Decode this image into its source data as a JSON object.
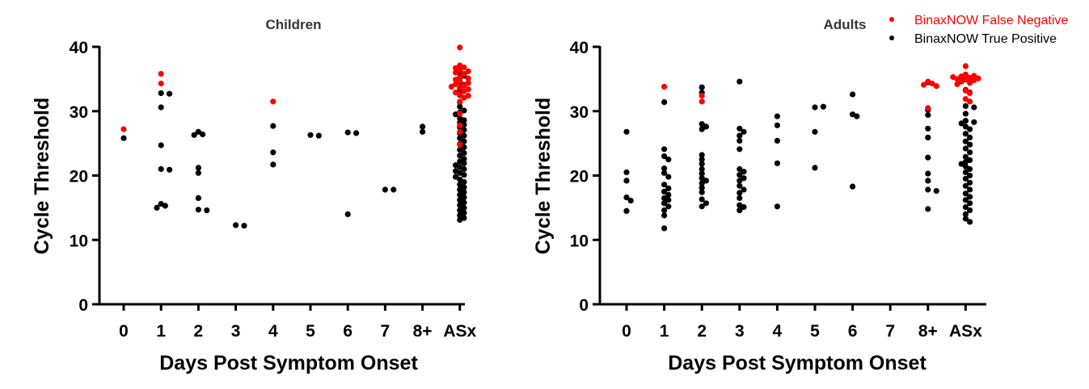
{
  "legend": {
    "items": [
      {
        "label": "BinaxNOW False Negative",
        "color": "#ff0000"
      },
      {
        "label": "BinaxNOW True Positive",
        "color": "#000000"
      }
    ]
  },
  "chart_data": [
    {
      "type": "scatter",
      "title": "Children",
      "xlabel": "Days Post Symptom Onset",
      "ylabel": "Cycle Threshold",
      "categories": [
        "0",
        "1",
        "2",
        "3",
        "4",
        "5",
        "6",
        "7",
        "8+",
        "ASx"
      ],
      "ylim": [
        0,
        40
      ],
      "yticks": [
        "0",
        "10",
        "20",
        "30",
        "40"
      ],
      "grid": false,
      "series": [
        {
          "name": "BinaxNOW False Negative",
          "color": "#ff0000",
          "points": {
            "0": [
              27.2
            ],
            "1": [
              35.8,
              34.3
            ],
            "4": [
              31.5
            ],
            "ASx": [
              39.9,
              37.1,
              36.8,
              36.7,
              36.4,
              36.2,
              36.0,
              35.8,
              35.3,
              35.1,
              34.9,
              34.6,
              34.4,
              34.2,
              34.0,
              33.8,
              33.6,
              33.4,
              33.1,
              32.9,
              32.6,
              32.4,
              32.1,
              31.5,
              29.6,
              27.8,
              26.8,
              24.8
            ]
          }
        },
        {
          "name": "BinaxNOW True Positive",
          "color": "#000000",
          "points": {
            "0": [
              25.8
            ],
            "1": [
              32.8,
              32.7,
              30.6,
              24.7,
              21.0,
              20.9,
              15.6,
              15.3,
              15.0
            ],
            "2": [
              26.8,
              26.4,
              26.3,
              21.2,
              20.4,
              16.5,
              14.7,
              14.6
            ],
            "3": [
              12.3,
              12.2
            ],
            "4": [
              27.7,
              23.6,
              21.7
            ],
            "5": [
              26.3,
              26.2
            ],
            "6": [
              26.7,
              26.6,
              14.0
            ],
            "7": [
              17.8,
              17.8
            ],
            "8+": [
              27.6,
              26.8
            ],
            "ASx": [
              36.0,
              35.5,
              35.2,
              34.5,
              34.1,
              33.3,
              32.5,
              31.4,
              30.7,
              30.1,
              29.8,
              29.5,
              28.9,
              28.6,
              28.2,
              27.9,
              27.5,
              27.1,
              26.6,
              26.2,
              25.8,
              25.3,
              24.9,
              24.4,
              24.0,
              23.5,
              23.1,
              22.6,
              22.2,
              21.9,
              21.6,
              21.3,
              21.0,
              20.7,
              20.4,
              20.1,
              19.8,
              19.4,
              19.0,
              18.6,
              18.2,
              17.8,
              17.4,
              17.0,
              16.6,
              16.2,
              15.8,
              15.4,
              15.0,
              14.6,
              14.2,
              13.8,
              13.4,
              13.1
            ]
          }
        }
      ]
    },
    {
      "type": "scatter",
      "title": "Adults",
      "xlabel": "Days Post Symptom Onset",
      "ylabel": "Cycle Threshold",
      "categories": [
        "0",
        "1",
        "2",
        "3",
        "4",
        "5",
        "6",
        "7",
        "8+",
        "ASx"
      ],
      "ylim": [
        0,
        40
      ],
      "yticks": [
        "0",
        "10",
        "20",
        "30",
        "40"
      ],
      "grid": false,
      "series": [
        {
          "name": "BinaxNOW False Negative",
          "color": "#ff0000",
          "points": {
            "1": [
              33.8
            ],
            "2": [
              32.4,
              31.5
            ],
            "8+": [
              34.6,
              34.3,
              34.1,
              33.9,
              30.5
            ],
            "ASx": [
              37.0,
              35.7,
              35.5,
              35.4,
              35.3,
              35.2,
              35.1,
              35.0,
              34.9,
              34.8,
              34.6,
              34.4,
              34.2,
              33.2,
              32.8,
              31.9,
              31.5
            ]
          }
        },
        {
          "name": "BinaxNOW True Positive",
          "color": "#000000",
          "points": {
            "0": [
              26.8,
              20.5,
              19.2,
              16.6,
              16.1,
              14.5
            ],
            "1": [
              31.4,
              24.1,
              23.0,
              22.5,
              21.1,
              20.4,
              19.8,
              18.6,
              18.0,
              17.5,
              17.0,
              16.5,
              16.2,
              15.7,
              15.2,
              14.6,
              13.8,
              11.8
            ],
            "2": [
              33.7,
              32.9,
              28.0,
              27.6,
              27.2,
              23.2,
              22.5,
              21.8,
              21.0,
              20.3,
              19.6,
              19.2,
              18.8,
              18.1,
              17.4,
              16.3,
              15.7,
              15.2
            ],
            "3": [
              34.6,
              27.3,
              26.8,
              26.2,
              25.4,
              24.1,
              21.0,
              20.6,
              20.1,
              19.6,
              19.2,
              18.4,
              17.8,
              17.3,
              16.5,
              15.4,
              15.1,
              14.6
            ],
            "4": [
              29.2,
              27.8,
              25.4,
              21.9,
              15.2
            ],
            "5": [
              30.6,
              30.7,
              26.8,
              21.2
            ],
            "6": [
              32.6,
              29.5,
              29.2,
              18.3
            ],
            "8+": [
              34.5,
              30.2,
              29.4,
              27.3,
              25.9,
              22.8,
              20.3,
              19.2,
              17.8,
              17.6,
              14.8
            ],
            "ASx": [
              33.3,
              32.9,
              30.8,
              30.6,
              29.6,
              28.5,
              28.3,
              28.1,
              27.6,
              27.2,
              26.5,
              25.9,
              25.3,
              24.8,
              24.2,
              23.6,
              22.9,
              22.4,
              22.1,
              21.8,
              21.4,
              21.0,
              20.5,
              20.0,
              19.5,
              18.9,
              18.4,
              17.8,
              17.2,
              16.7,
              16.2,
              15.7,
              15.1,
              14.6,
              14.0,
              13.3,
              12.8
            ]
          }
        }
      ]
    }
  ]
}
